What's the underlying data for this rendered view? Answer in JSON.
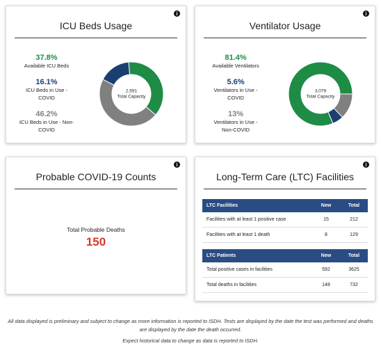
{
  "chart_data": [
    {
      "type": "donut",
      "title": "ICU Beds Usage",
      "categories": [
        "Available ICU Beds",
        "ICU Beds in Use - COVID",
        "ICU Beds in Use - Non-COVID"
      ],
      "values": [
        37.8,
        16.1,
        46.2
      ],
      "value_labels": [
        "37.8%",
        "16.1%",
        "46.2%"
      ],
      "colors": [
        "#1e8c45",
        "#1b3f73",
        "#808080"
      ],
      "total": {
        "value": 2591,
        "label": "2,591"
      },
      "total_label": "Total Capacity"
    },
    {
      "type": "donut",
      "title": "Ventilator Usage",
      "categories": [
        "Available Ventilators",
        "Ventilators in Use - COVID",
        "Ventilators in Use - Non-COVID"
      ],
      "values": [
        81.4,
        5.6,
        13
      ],
      "value_labels": [
        "81.4%",
        "5.6%",
        "13%"
      ],
      "colors": [
        "#1e8c45",
        "#1b3f73",
        "#808080"
      ],
      "total": {
        "value": 3079,
        "label": "3,079"
      },
      "total_label": "Total Capacity"
    }
  ],
  "probable": {
    "title": "Probable COVID-19 Counts",
    "label": "Total Probable Deaths",
    "value": 150
  },
  "ltc": {
    "title": "Long-Term Care (LTC) Facilities",
    "tables": [
      {
        "header": [
          "LTC Facilities",
          "New",
          "Total"
        ],
        "rows": [
          [
            "Facilities with at least 1 positive case",
            15,
            212
          ],
          [
            "Facilities with at least 1 death",
            8,
            129
          ]
        ]
      },
      {
        "header": [
          "LTC Patients",
          "New",
          "Total"
        ],
        "rows": [
          [
            "Total positive cases in facilities",
            592,
            3625
          ],
          [
            "Total deaths in facilities",
            148,
            732
          ]
        ]
      }
    ]
  },
  "notes": [
    "All data displayed is preliminary and subject to change as more information is reported to ISDH. Tests are displayed by the date the test was performed and deaths are displayed by the date the death occurred.",
    "Expect historical data to change as data is reported to ISDH."
  ]
}
